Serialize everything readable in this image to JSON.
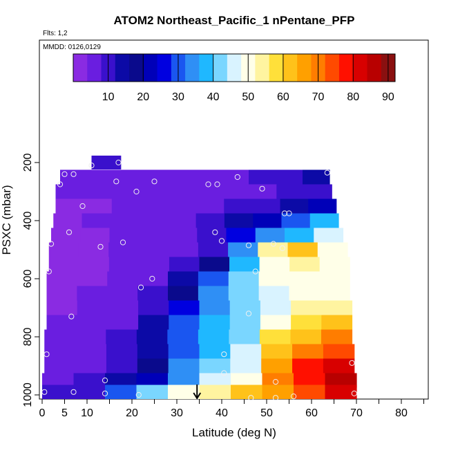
{
  "chart_data": {
    "type": "heatmap",
    "title": "ATOM2 Northeast_Pacific_1 nPentane_PFP",
    "flights_label": "Flts: 1,2",
    "dates_label": "MMDD: 0126,0129",
    "xlabel": "Latitude (deg N)",
    "ylabel": "PSXC (mbar)",
    "xlim": [
      0,
      85
    ],
    "ylim": [
      1000,
      0
    ],
    "x_ticks": [
      0,
      5,
      10,
      20,
      30,
      40,
      50,
      60,
      70,
      80
    ],
    "x_minor_ticks": [
      15,
      25,
      35,
      45,
      55,
      65,
      75,
      85
    ],
    "y_ticks": [
      200,
      400,
      600,
      800,
      1000
    ],
    "colorbar": {
      "min": 0,
      "max": 92,
      "ticks": [
        10,
        20,
        30,
        40,
        50,
        60,
        70,
        80,
        90
      ],
      "colors": [
        "#8a2be2",
        "#6a1ee0",
        "#3a10cc",
        "#0c0aa6",
        "#0a0a8c",
        "#0000b8",
        "#0000e0",
        "#1a56f0",
        "#2f8ff5",
        "#1fb8ff",
        "#7ad6ff",
        "#d9f3ff",
        "#ffffe8",
        "#fff4a0",
        "#ffe03a",
        "#ffc21a",
        "#ffa000",
        "#ff7d00",
        "#ff4a00",
        "#ff1000",
        "#d80000",
        "#b80000",
        "#8a1010"
      ]
    },
    "rows": [
      {
        "p": 200,
        "x0": 11,
        "x1": 17.5,
        "v": [
          9
        ]
      },
      {
        "p": 250,
        "x0": 4,
        "x1": 64,
        "v": [
          4,
          4,
          4,
          4,
          5,
          5,
          6,
          8,
          9,
          12
        ]
      },
      {
        "p": 300,
        "x0": 3,
        "x1": 64.5,
        "v": [
          4,
          4,
          4,
          4,
          4,
          5,
          6,
          6,
          8,
          10
        ]
      },
      {
        "p": 350,
        "x0": 3,
        "x1": 65.5,
        "v": [
          3,
          3,
          4,
          5,
          5,
          6,
          9,
          10,
          12,
          20
        ]
      },
      {
        "p": 400,
        "x0": 2.5,
        "x1": 66,
        "v": [
          3,
          4,
          5,
          5,
          6,
          8,
          14,
          22,
          30,
          37
        ]
      },
      {
        "p": 450,
        "x0": 2,
        "x1": 67,
        "v": [
          3,
          3,
          4,
          5,
          6,
          8,
          25,
          33,
          38,
          45
        ]
      },
      {
        "p": 500,
        "x0": 1.5,
        "x1": 68,
        "v": [
          3,
          3,
          4,
          5,
          7,
          10,
          35,
          55,
          63,
          50
        ]
      },
      {
        "p": 550,
        "x0": 1.5,
        "x1": 68.5,
        "v": [
          2,
          3,
          4,
          6,
          9,
          18,
          36,
          49,
          55,
          51
        ]
      },
      {
        "p": 600,
        "x0": 1,
        "x1": 68.5,
        "v": [
          2,
          3,
          4,
          6,
          12,
          30,
          43,
          49,
          52,
          50
        ]
      },
      {
        "p": 650,
        "x0": 1,
        "x1": 68.5,
        "v": [
          3,
          4,
          5,
          8,
          18,
          32,
          40,
          47,
          52,
          50
        ]
      },
      {
        "p": 700,
        "x0": 1,
        "x1": 69,
        "v": [
          3,
          4,
          6,
          10,
          24,
          35,
          42,
          47,
          54,
          55
        ]
      },
      {
        "p": 750,
        "x0": 1,
        "x1": 69,
        "v": [
          4,
          5,
          7,
          12,
          28,
          38,
          43,
          52,
          57,
          60
        ]
      },
      {
        "p": 800,
        "x0": 0.5,
        "x1": 69,
        "v": [
          4,
          5,
          8,
          12,
          30,
          38,
          43,
          57,
          63,
          68
        ]
      },
      {
        "p": 850,
        "x0": 0.5,
        "x1": 69.5,
        "v": [
          5,
          6,
          9,
          14,
          30,
          38,
          44,
          62,
          70,
          75
        ]
      },
      {
        "p": 900,
        "x0": 0.5,
        "x1": 69.5,
        "v": [
          6,
          7,
          10,
          18,
          33,
          40,
          45,
          66,
          76,
          82
        ]
      },
      {
        "p": 950,
        "x0": 0,
        "x1": 70,
        "v": [
          7,
          8,
          12,
          22,
          34,
          44,
          50,
          70,
          78,
          84
        ]
      },
      {
        "p": 1000,
        "x0": 0,
        "x1": 70,
        "v": [
          8,
          10,
          30,
          40,
          50,
          55,
          60,
          66,
          72,
          80
        ]
      }
    ],
    "points": [
      {
        "lat": 11,
        "p": 210
      },
      {
        "lat": 17,
        "p": 200
      },
      {
        "lat": 5,
        "p": 240
      },
      {
        "lat": 7,
        "p": 240
      },
      {
        "lat": 4,
        "p": 275
      },
      {
        "lat": 16.5,
        "p": 265
      },
      {
        "lat": 25,
        "p": 265
      },
      {
        "lat": 21,
        "p": 300
      },
      {
        "lat": 37,
        "p": 275
      },
      {
        "lat": 39,
        "p": 275
      },
      {
        "lat": 43.5,
        "p": 250
      },
      {
        "lat": 49,
        "p": 290
      },
      {
        "lat": 63.5,
        "p": 235
      },
      {
        "lat": 9,
        "p": 350
      },
      {
        "lat": 54,
        "p": 375
      },
      {
        "lat": 55,
        "p": 375
      },
      {
        "lat": 6,
        "p": 440
      },
      {
        "lat": 38.5,
        "p": 440
      },
      {
        "lat": 2,
        "p": 480
      },
      {
        "lat": 13,
        "p": 490
      },
      {
        "lat": 18,
        "p": 475
      },
      {
        "lat": 40,
        "p": 470
      },
      {
        "lat": 46,
        "p": 485
      },
      {
        "lat": 51.5,
        "p": 480
      },
      {
        "lat": 53.5,
        "p": 495
      },
      {
        "lat": 1.5,
        "p": 575
      },
      {
        "lat": 24.5,
        "p": 600
      },
      {
        "lat": 22,
        "p": 630
      },
      {
        "lat": 47.5,
        "p": 575
      },
      {
        "lat": 6.5,
        "p": 730
      },
      {
        "lat": 46,
        "p": 720
      },
      {
        "lat": 1,
        "p": 860
      },
      {
        "lat": 40.5,
        "p": 860
      },
      {
        "lat": 40.5,
        "p": 925
      },
      {
        "lat": 69,
        "p": 890
      },
      {
        "lat": 14,
        "p": 950
      },
      {
        "lat": 52,
        "p": 955
      },
      {
        "lat": 0.5,
        "p": 990
      },
      {
        "lat": 7,
        "p": 990
      },
      {
        "lat": 14,
        "p": 995
      },
      {
        "lat": 21.5,
        "p": 1000
      },
      {
        "lat": 46.5,
        "p": 1010
      },
      {
        "lat": 52,
        "p": 1010
      },
      {
        "lat": 56,
        "p": 1005
      },
      {
        "lat": 69.5,
        "p": 995
      }
    ],
    "arrow": {
      "lat": 34.5
    }
  }
}
